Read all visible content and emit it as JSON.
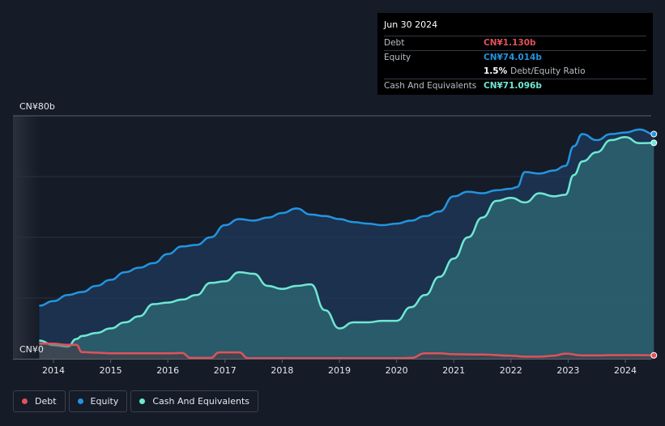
{
  "chart_data": {
    "type": "area",
    "ylim": [
      0,
      80
    ],
    "y_tick_labels": [
      "CN¥80b",
      "CN¥0"
    ],
    "x_ticks": [
      2014,
      2015,
      2016,
      2017,
      2018,
      2019,
      2020,
      2021,
      2022,
      2023,
      2024
    ],
    "x_range": [
      2013.3,
      2024.55
    ],
    "grid": true,
    "legend_position": "bottom-left",
    "series": [
      {
        "name": "Debt",
        "color": "#e0525a",
        "x": [
          2013.75,
          2014.0,
          2014.25,
          2014.4,
          2014.5,
          2014.75,
          2015.0,
          2015.5,
          2016.0,
          2016.25,
          2016.4,
          2016.75,
          2016.9,
          2017.25,
          2017.4,
          2017.75,
          2018.0,
          2018.5,
          2019.0,
          2019.5,
          2020.0,
          2020.25,
          2020.5,
          2020.75,
          2021.0,
          2021.5,
          2022.0,
          2022.25,
          2022.5,
          2022.75,
          2022.95,
          2023.25,
          2023.5,
          2023.75,
          2024.0,
          2024.25,
          2024.5
        ],
        "values": [
          5.0,
          5.0,
          4.6,
          4.6,
          2.2,
          2.0,
          1.8,
          1.8,
          1.8,
          1.9,
          0.3,
          0.3,
          2.1,
          2.1,
          0.2,
          0.2,
          0.2,
          0.2,
          0.2,
          0.2,
          0.2,
          0.3,
          1.8,
          1.8,
          1.5,
          1.4,
          1.0,
          0.7,
          0.7,
          1.0,
          1.7,
          1.1,
          1.1,
          1.2,
          1.2,
          1.2,
          1.13
        ]
      },
      {
        "name": "Equity",
        "color": "#2394df",
        "x": [
          2013.75,
          2014.0,
          2014.25,
          2014.5,
          2014.75,
          2015.0,
          2015.25,
          2015.5,
          2015.75,
          2016.0,
          2016.25,
          2016.5,
          2016.75,
          2017.0,
          2017.25,
          2017.5,
          2017.75,
          2018.0,
          2018.25,
          2018.5,
          2018.75,
          2019.0,
          2019.25,
          2019.5,
          2019.75,
          2020.0,
          2020.25,
          2020.5,
          2020.75,
          2021.0,
          2021.25,
          2021.5,
          2021.75,
          2022.0,
          2022.1,
          2022.25,
          2022.5,
          2022.75,
          2022.95,
          2023.1,
          2023.25,
          2023.5,
          2023.75,
          2024.0,
          2024.25,
          2024.5
        ],
        "values": [
          17.5,
          19.0,
          21.0,
          22.0,
          24.0,
          26.0,
          28.5,
          30.0,
          31.5,
          34.5,
          37.0,
          37.5,
          40.0,
          44.0,
          46.0,
          45.5,
          46.5,
          48.0,
          49.5,
          47.5,
          47.0,
          46.0,
          45.0,
          44.5,
          44.0,
          44.5,
          45.5,
          47.0,
          48.5,
          53.5,
          55.0,
          54.5,
          55.5,
          56.0,
          56.5,
          61.5,
          61.0,
          62.0,
          63.5,
          70.0,
          74.0,
          72.0,
          74.0,
          74.5,
          75.5,
          74.0
        ]
      },
      {
        "name": "Cash And Equivalents",
        "color": "#6fe7d3",
        "x": [
          2013.75,
          2014.0,
          2014.25,
          2014.4,
          2014.5,
          2014.75,
          2015.0,
          2015.25,
          2015.5,
          2015.75,
          2016.0,
          2016.25,
          2016.5,
          2016.75,
          2017.0,
          2017.25,
          2017.5,
          2017.75,
          2018.0,
          2018.25,
          2018.5,
          2018.75,
          2019.0,
          2019.25,
          2019.5,
          2019.75,
          2020.0,
          2020.25,
          2020.5,
          2020.75,
          2021.0,
          2021.25,
          2021.5,
          2021.75,
          2022.0,
          2022.25,
          2022.5,
          2022.75,
          2022.95,
          2023.1,
          2023.25,
          2023.5,
          2023.75,
          2024.0,
          2024.25,
          2024.5
        ],
        "values": [
          6.0,
          4.5,
          4.0,
          6.5,
          7.5,
          8.5,
          10.0,
          12.0,
          14.0,
          18.0,
          18.5,
          19.5,
          21.0,
          25.0,
          25.5,
          28.5,
          28.0,
          24.0,
          23.0,
          24.0,
          24.5,
          16.0,
          10.0,
          12.0,
          12.0,
          12.5,
          12.5,
          17.0,
          21.0,
          27.0,
          33.0,
          40.0,
          46.5,
          52.0,
          53.0,
          51.5,
          54.5,
          53.5,
          54.0,
          60.5,
          65.0,
          68.0,
          72.0,
          73.0,
          71.0,
          71.096
        ]
      }
    ]
  },
  "tooltip": {
    "date": "Jun 30 2024",
    "debt_label": "Debt",
    "debt_value": "CN¥1.130b",
    "equity_label": "Equity",
    "equity_value": "CN¥74.014b",
    "ratio_value": "1.5%",
    "ratio_text": "Debt/Equity Ratio",
    "cash_label": "Cash And Equivalents",
    "cash_value": "CN¥71.096b"
  },
  "legend": {
    "debt": "Debt",
    "equity": "Equity",
    "cash": "Cash And Equivalents"
  },
  "colors": {
    "background": "#151b27",
    "debt": "#e0525a",
    "equity": "#2394df",
    "cash": "#6fe7d3"
  }
}
